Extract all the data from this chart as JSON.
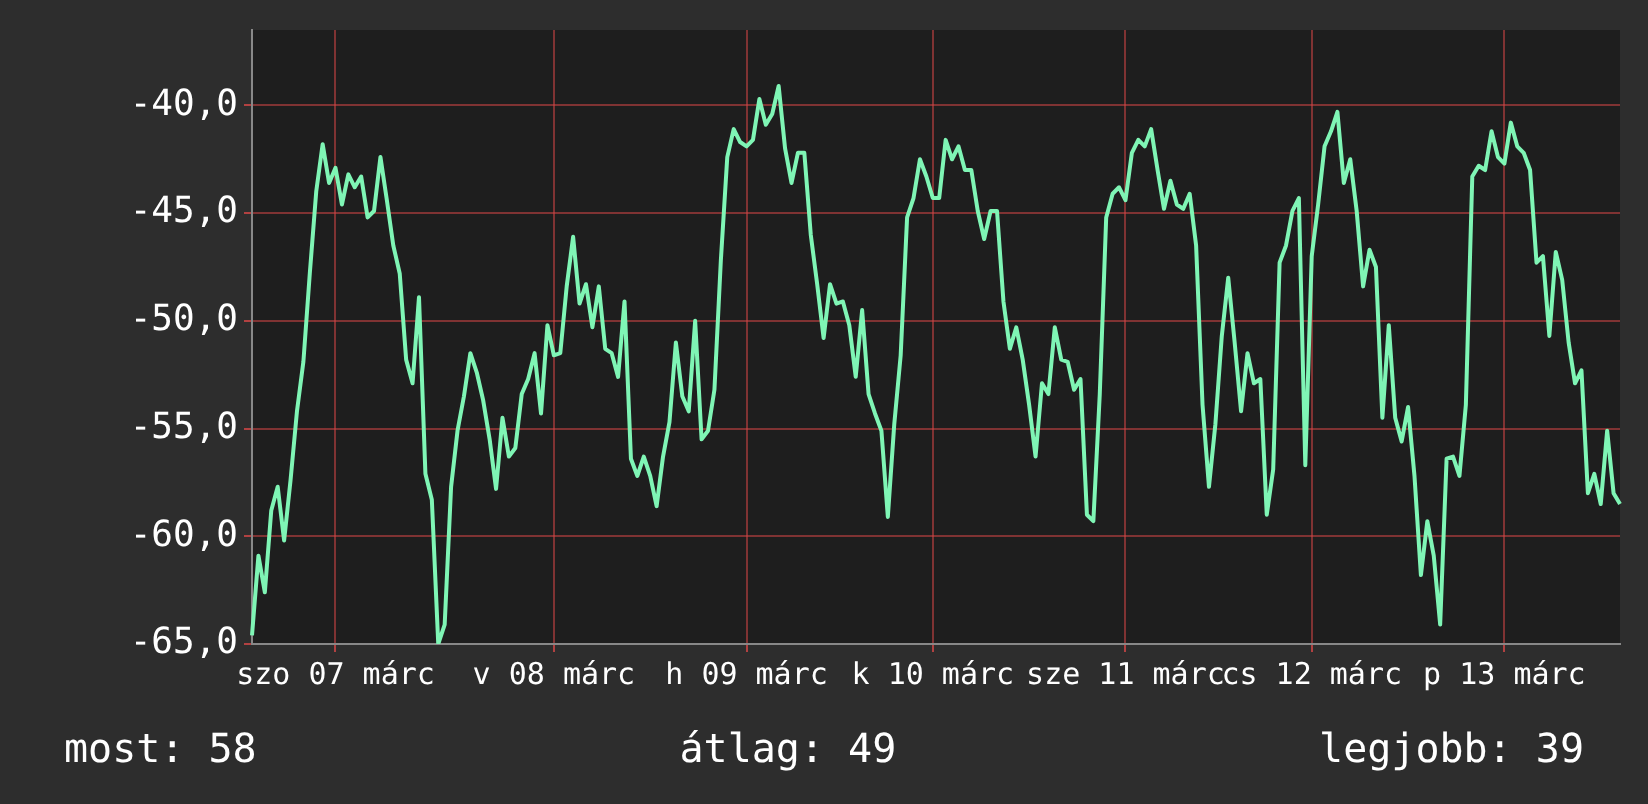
{
  "chart_data": {
    "type": "line",
    "color": "#7ff5b5",
    "marker": "none",
    "line_style": "solid",
    "grid": true,
    "legend": false,
    "categories": [
      null,
      null,
      null,
      null,
      null,
      null,
      null,
      null,
      null,
      null,
      null,
      null,
      null,
      "szo 07 márc",
      null,
      null,
      null,
      null,
      null,
      null,
      null,
      null,
      null,
      null,
      null,
      null,
      null,
      null,
      null,
      null,
      null,
      null,
      null,
      null,
      null,
      null,
      null,
      null,
      null,
      null,
      null,
      null,
      null,
      null,
      null,
      null,
      null,
      "v 08 márc",
      null,
      null,
      null,
      null,
      null,
      null,
      null,
      null,
      null,
      null,
      null,
      null,
      null,
      null,
      null,
      null,
      null,
      null,
      null,
      null,
      null,
      null,
      null,
      null,
      null,
      null,
      null,
      null,
      null,
      "h 09 márc",
      null,
      null,
      null,
      null,
      null,
      null,
      null,
      null,
      null,
      null,
      null,
      null,
      null,
      null,
      null,
      null,
      null,
      null,
      null,
      null,
      null,
      null,
      null,
      null,
      null,
      null,
      null,
      null,
      "k 10 márc",
      null,
      null,
      null,
      null,
      null,
      null,
      null,
      null,
      null,
      null,
      null,
      null,
      null,
      null,
      null,
      null,
      null,
      null,
      null,
      null,
      null,
      null,
      null,
      null,
      null,
      null,
      null,
      null,
      null,
      "sze 11 márc",
      null,
      null,
      null,
      null,
      null,
      null,
      null,
      null,
      null,
      null,
      null,
      null,
      null,
      null,
      null,
      null,
      null,
      null,
      null,
      null,
      null,
      null,
      null,
      null,
      null,
      null,
      null,
      null,
      "cs 12 márc",
      null,
      null,
      null,
      null,
      null,
      null,
      null,
      null,
      null,
      null,
      null,
      null,
      null,
      null,
      null,
      null,
      null,
      null,
      null,
      null,
      null,
      null,
      null,
      null,
      null,
      null,
      null,
      null,
      null,
      "p 13 márc",
      null,
      null,
      null,
      null,
      null,
      null,
      null,
      null,
      null,
      null,
      null,
      null,
      null,
      null,
      null,
      null,
      null,
      null
    ],
    "values": [
      -64.6,
      -60.9,
      -62.6,
      -58.8,
      -57.7,
      -60.2,
      -57.4,
      -54.2,
      -51.9,
      -47.8,
      -44.0,
      -41.8,
      -43.6,
      -42.9,
      -44.6,
      -43.2,
      -43.8,
      -43.3,
      -45.2,
      -44.9,
      -42.4,
      -44.4,
      -46.5,
      -47.8,
      -51.8,
      -52.9,
      -48.9,
      -57.1,
      -58.3,
      -65.0,
      -64.1,
      -57.7,
      -55.1,
      -53.5,
      -51.5,
      -52.4,
      -53.7,
      -55.5,
      -57.8,
      -54.5,
      -56.3,
      -55.9,
      -53.4,
      -52.7,
      -51.5,
      -54.3,
      -50.2,
      -51.6,
      -51.5,
      -48.4,
      -46.1,
      -49.2,
      -48.3,
      -50.3,
      -48.4,
      -51.3,
      -51.5,
      -52.6,
      -49.1,
      -56.4,
      -57.2,
      -56.3,
      -57.2,
      -58.6,
      -56.3,
      -54.7,
      -51.0,
      -53.5,
      -54.2,
      -50.0,
      -55.5,
      -55.1,
      -53.2,
      -47.2,
      -42.4,
      -41.1,
      -41.7,
      -41.9,
      -41.6,
      -39.7,
      -40.9,
      -40.4,
      -39.1,
      -42.0,
      -43.6,
      -42.2,
      -42.2,
      -46.0,
      -48.3,
      -50.8,
      -48.3,
      -49.2,
      -49.1,
      -50.2,
      -52.6,
      -49.5,
      -53.4,
      -54.3,
      -55.1,
      -59.1,
      -54.8,
      -51.6,
      -45.2,
      -44.3,
      -42.5,
      -43.3,
      -44.3,
      -44.3,
      -41.6,
      -42.5,
      -41.9,
      -43.0,
      -43.0,
      -44.9,
      -46.2,
      -44.9,
      -44.9,
      -49.1,
      -51.3,
      -50.3,
      -51.8,
      -53.9,
      -56.3,
      -52.9,
      -53.4,
      -50.3,
      -51.8,
      -51.9,
      -53.2,
      -52.7,
      -59.0,
      -59.3,
      -53.4,
      -45.2,
      -44.1,
      -43.8,
      -44.4,
      -42.2,
      -41.6,
      -41.9,
      -41.1,
      -43.0,
      -44.8,
      -43.5,
      -44.6,
      -44.8,
      -44.1,
      -46.5,
      -53.9,
      -57.7,
      -54.8,
      -50.7,
      -48.0,
      -51.0,
      -54.2,
      -51.5,
      -52.9,
      -52.7,
      -59.0,
      -56.9,
      -47.3,
      -46.5,
      -44.9,
      -44.3,
      -56.7,
      -47.0,
      -44.6,
      -41.9,
      -41.2,
      -40.3,
      -43.6,
      -42.5,
      -44.9,
      -48.4,
      -46.7,
      -47.5,
      -54.5,
      -50.2,
      -54.5,
      -55.6,
      -54.0,
      -57.2,
      -61.8,
      -59.3,
      -60.9,
      -64.1,
      -56.4,
      -56.3,
      -57.2,
      -53.9,
      -43.3,
      -42.8,
      -43.0,
      -41.2,
      -42.4,
      -42.7,
      -40.8,
      -41.9,
      -42.2,
      -43.0,
      -47.3,
      -47.0,
      -50.7,
      -46.8,
      -48.1,
      -51.0,
      -52.9,
      -52.3,
      -58.0,
      -57.1,
      -58.5,
      -55.1,
      -58.0,
      -58.5
    ],
    "ylim": [
      -65,
      -36.5
    ],
    "yticks": [
      {
        "value": -65,
        "label": "-65,0"
      },
      {
        "value": -60,
        "label": "-60,0"
      },
      {
        "value": -55,
        "label": "-55,0"
      },
      {
        "value": -50,
        "label": "-50,0"
      },
      {
        "value": -45,
        "label": "-45,0"
      },
      {
        "value": -40,
        "label": "-40,0"
      }
    ],
    "annotations": [
      "most: 58",
      "átlag: 49",
      "legjobb: 39"
    ]
  }
}
